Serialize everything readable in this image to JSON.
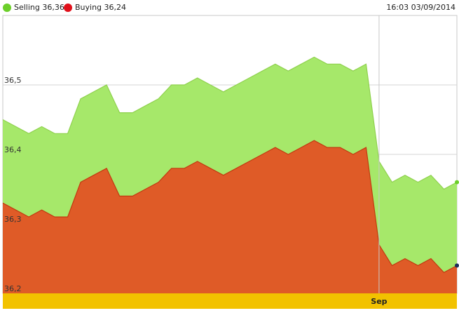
{
  "timestamp": "16:03 03/09/2014",
  "colors": {
    "selling_fill": "#a6e86a",
    "selling_line": "#8fd14e",
    "buying_fill": "#df5b27",
    "buying_line": "#c23a10",
    "selling_dot": "#6ccf2a",
    "buying_dot": "#e0101a",
    "grid": "#d4d4d4",
    "axis_band": "#f2c200",
    "end_marker": "#1b2f5a"
  },
  "chart_data": {
    "type": "area",
    "ylim": [
      36.2,
      36.6
    ],
    "yticks": [
      "36,2",
      "36,3",
      "36,4",
      "36,5"
    ],
    "ytick_values": [
      36.2,
      36.3,
      36.4,
      36.5
    ],
    "x_month_label": "Sep",
    "month_boundary_index": 29,
    "grid": true,
    "series": [
      {
        "name": "Selling",
        "legend_label": "Selling 36,36",
        "values": [
          36.45,
          36.44,
          36.43,
          36.44,
          36.43,
          36.43,
          36.48,
          36.49,
          36.5,
          36.46,
          36.46,
          36.47,
          36.48,
          36.5,
          36.5,
          36.51,
          36.5,
          36.49,
          36.5,
          36.51,
          36.52,
          36.53,
          36.52,
          36.53,
          36.54,
          36.53,
          36.53,
          36.52,
          36.53,
          36.39,
          36.36,
          36.37,
          36.36,
          36.37,
          36.35,
          36.36
        ]
      },
      {
        "name": "Buying",
        "legend_label": "Buying 36,24",
        "values": [
          36.33,
          36.32,
          36.31,
          36.32,
          36.31,
          36.31,
          36.36,
          36.37,
          36.38,
          36.34,
          36.34,
          36.35,
          36.36,
          36.38,
          36.38,
          36.39,
          36.38,
          36.37,
          36.38,
          36.39,
          36.4,
          36.41,
          36.4,
          36.41,
          36.42,
          36.41,
          36.41,
          36.4,
          36.41,
          36.27,
          36.24,
          36.25,
          36.24,
          36.25,
          36.23,
          36.24
        ]
      }
    ]
  }
}
